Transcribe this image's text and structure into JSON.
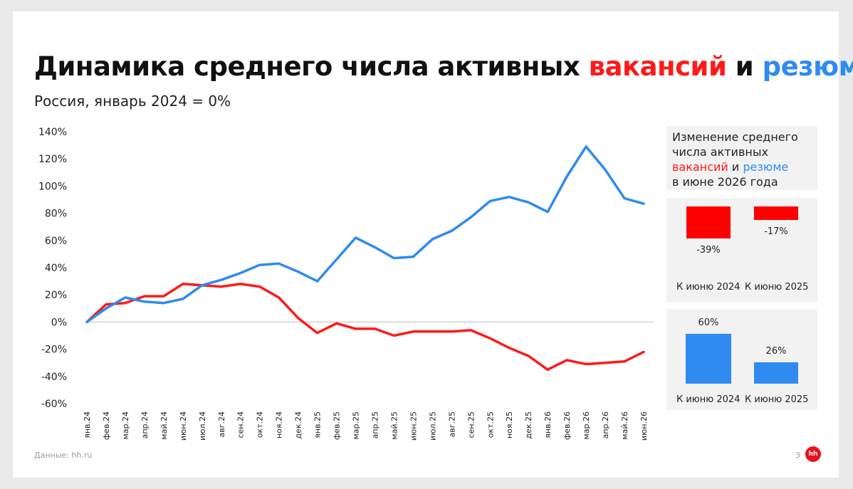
{
  "domain": "Chart",
  "slide": {
    "title_part1": "Динамика среднего числа активных ",
    "title_red": "вакансий",
    "title_mid": " и ",
    "title_blue": "резюме",
    "subtitle": "Россия, январь 2024 = 0%",
    "source": "Данные: hh.ru",
    "page_number": "3",
    "logo_text": "hh"
  },
  "colors": {
    "vacancies": "#ff1a1a",
    "resumes": "#2f8bef",
    "axis": "#bfbfbf"
  },
  "side_panel": {
    "title_line1": "Изменение среднего",
    "title_line2": "числа активных",
    "title_red": "вакансий",
    "title_mid": " и ",
    "title_blue": "резюме",
    "title_line4": "в июне 2026 года",
    "category_1": "К июню 2024",
    "category_2": "К июню 2025",
    "vacancies_labels": [
      "-39%",
      "-17%"
    ],
    "resumes_labels": [
      "60%",
      "26%"
    ]
  },
  "chart_data": [
    {
      "type": "line",
      "x": [
        "янв.24",
        "фев.24",
        "мар.24",
        "апр.24",
        "май.24",
        "июн.24",
        "июл.24",
        "авг.24",
        "сен.24",
        "окт.24",
        "ноя.24",
        "дек.24",
        "янв.25",
        "фев.25",
        "мар.25",
        "апр.25",
        "май.25",
        "июн.25",
        "июл.25",
        "авг.25",
        "сен.25",
        "окт.25",
        "ноя.25",
        "дек.25",
        "янв.26",
        "фев.26",
        "мар.26",
        "апр.26",
        "май.26",
        "июн.26"
      ],
      "y_tick_labels": [
        "140%",
        "120%",
        "100%",
        "80%",
        "60%",
        "40%",
        "20%",
        "0%",
        "-20%",
        "-40%",
        "-60%"
      ],
      "ylim": [
        -60,
        140
      ],
      "y_unit": "%",
      "grid": false,
      "series": [
        {
          "color": "#ff1a1a",
          "values": [
            0,
            13,
            14,
            19,
            19,
            28,
            27,
            26,
            28,
            26,
            18,
            3,
            -8,
            -1,
            -5,
            -5,
            -10,
            -7,
            -7,
            -7,
            -6,
            -12,
            -19,
            -25,
            -35,
            -28,
            -31,
            -30,
            -29,
            -22
          ]
        },
        {
          "color": "#2f8bef",
          "values": [
            0,
            10,
            18,
            15,
            14,
            17,
            27,
            31,
            36,
            42,
            43,
            37,
            30,
            46,
            62,
            55,
            47,
            48,
            61,
            67,
            77,
            89,
            92,
            88,
            81,
            107,
            129,
            112,
            91,
            87
          ]
        }
      ]
    },
    {
      "type": "bar",
      "categories": [
        "К июню 2024",
        "К июню 2025"
      ],
      "values": [
        -39,
        -17
      ],
      "color": "#ff0000",
      "data_labels": [
        "-39%",
        "-17%"
      ]
    },
    {
      "type": "bar",
      "categories": [
        "К июню 2024",
        "К июню 2025"
      ],
      "values": [
        60,
        26
      ],
      "color": "#2f8bef",
      "data_labels": [
        "60%",
        "26%"
      ]
    }
  ]
}
